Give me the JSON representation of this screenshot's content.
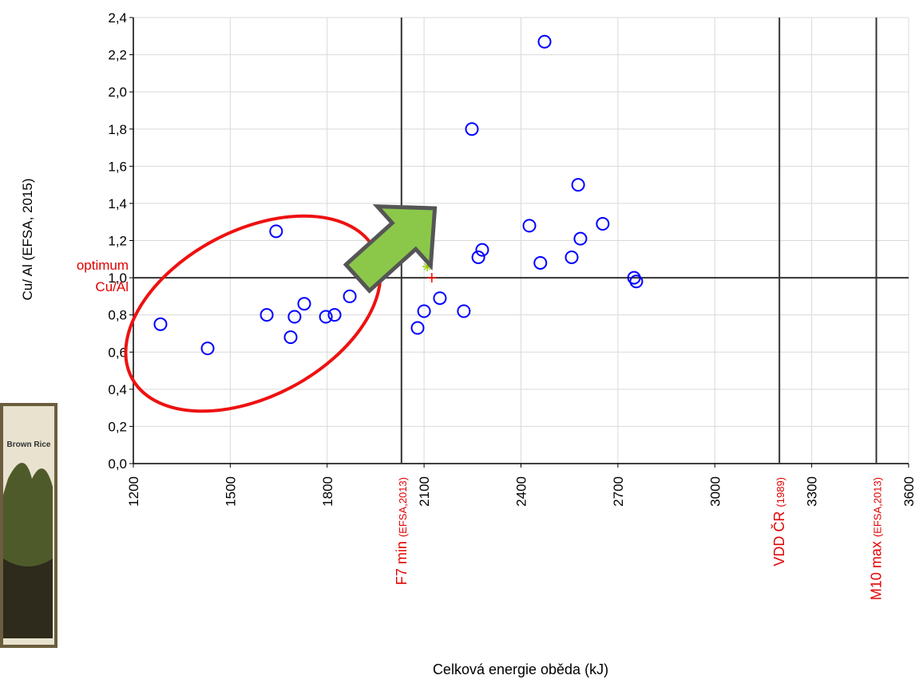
{
  "chart_data": {
    "type": "scatter",
    "x_label": "Celková energie oběda (kJ)",
    "y_label": "Cu/ Al (EFSA, 2015)",
    "xlim": [
      1200,
      3600
    ],
    "xticks": [
      1200,
      1500,
      1800,
      2100,
      2400,
      2700,
      3000,
      3300,
      3600
    ],
    "ylim": [
      0,
      2.4
    ],
    "yticks": [
      {
        "value": 0,
        "label": "0,0"
      },
      {
        "value": 0.2,
        "label": "0,2"
      },
      {
        "value": 0.4,
        "label": "0,4"
      },
      {
        "value": 0.6,
        "label": "0,6"
      },
      {
        "value": 0.8,
        "label": "0,8"
      },
      {
        "value": 1.0,
        "label": "1,0"
      },
      {
        "value": 1.2,
        "label": "1,2"
      },
      {
        "value": 1.4,
        "label": "1,4"
      },
      {
        "value": 1.6,
        "label": "1,6"
      },
      {
        "value": 1.8,
        "label": "1,8"
      },
      {
        "value": 2.0,
        "label": "2,0"
      },
      {
        "value": 2.2,
        "label": "2,2"
      },
      {
        "value": 2.4,
        "label": "2,4"
      }
    ],
    "grid": true,
    "color": "#0000ff",
    "x": [
      1284,
      1430,
      1642,
      1613,
      1687,
      1699,
      1729,
      1796,
      1823,
      1870,
      2080,
      2100,
      2149,
      2223,
      2248,
      2268,
      2280,
      2426,
      2460,
      2473,
      2557,
      2577,
      2584,
      2653,
      2750,
      2757
    ],
    "values": [
      0.75,
      0.62,
      1.25,
      0.8,
      0.68,
      0.79,
      0.86,
      0.79,
      0.8,
      0.9,
      0.73,
      0.82,
      0.89,
      0.82,
      1.8,
      1.11,
      1.15,
      1.28,
      1.08,
      2.27,
      1.11,
      1.5,
      1.21,
      1.29,
      1.0,
      0.98
    ],
    "special_points": [
      {
        "x": 2110,
        "y": 1.06,
        "color": "#99cc00"
      },
      {
        "x": 2124,
        "y": 1.0,
        "color": "#ff0000"
      }
    ],
    "ref_lines": [
      {
        "x": 2030,
        "label": "F7 min",
        "note": "(EFSA,2013)"
      },
      {
        "x": 3200,
        "label": "VDD ČR",
        "note": "(1989)"
      },
      {
        "x": 3500,
        "label": "M10 max",
        "note": "(EFSA,2013)"
      }
    ],
    "hline": {
      "y": 1.0,
      "label": [
        "optimum",
        "Cu/Al"
      ]
    },
    "image_caption": "Brown Rice"
  }
}
